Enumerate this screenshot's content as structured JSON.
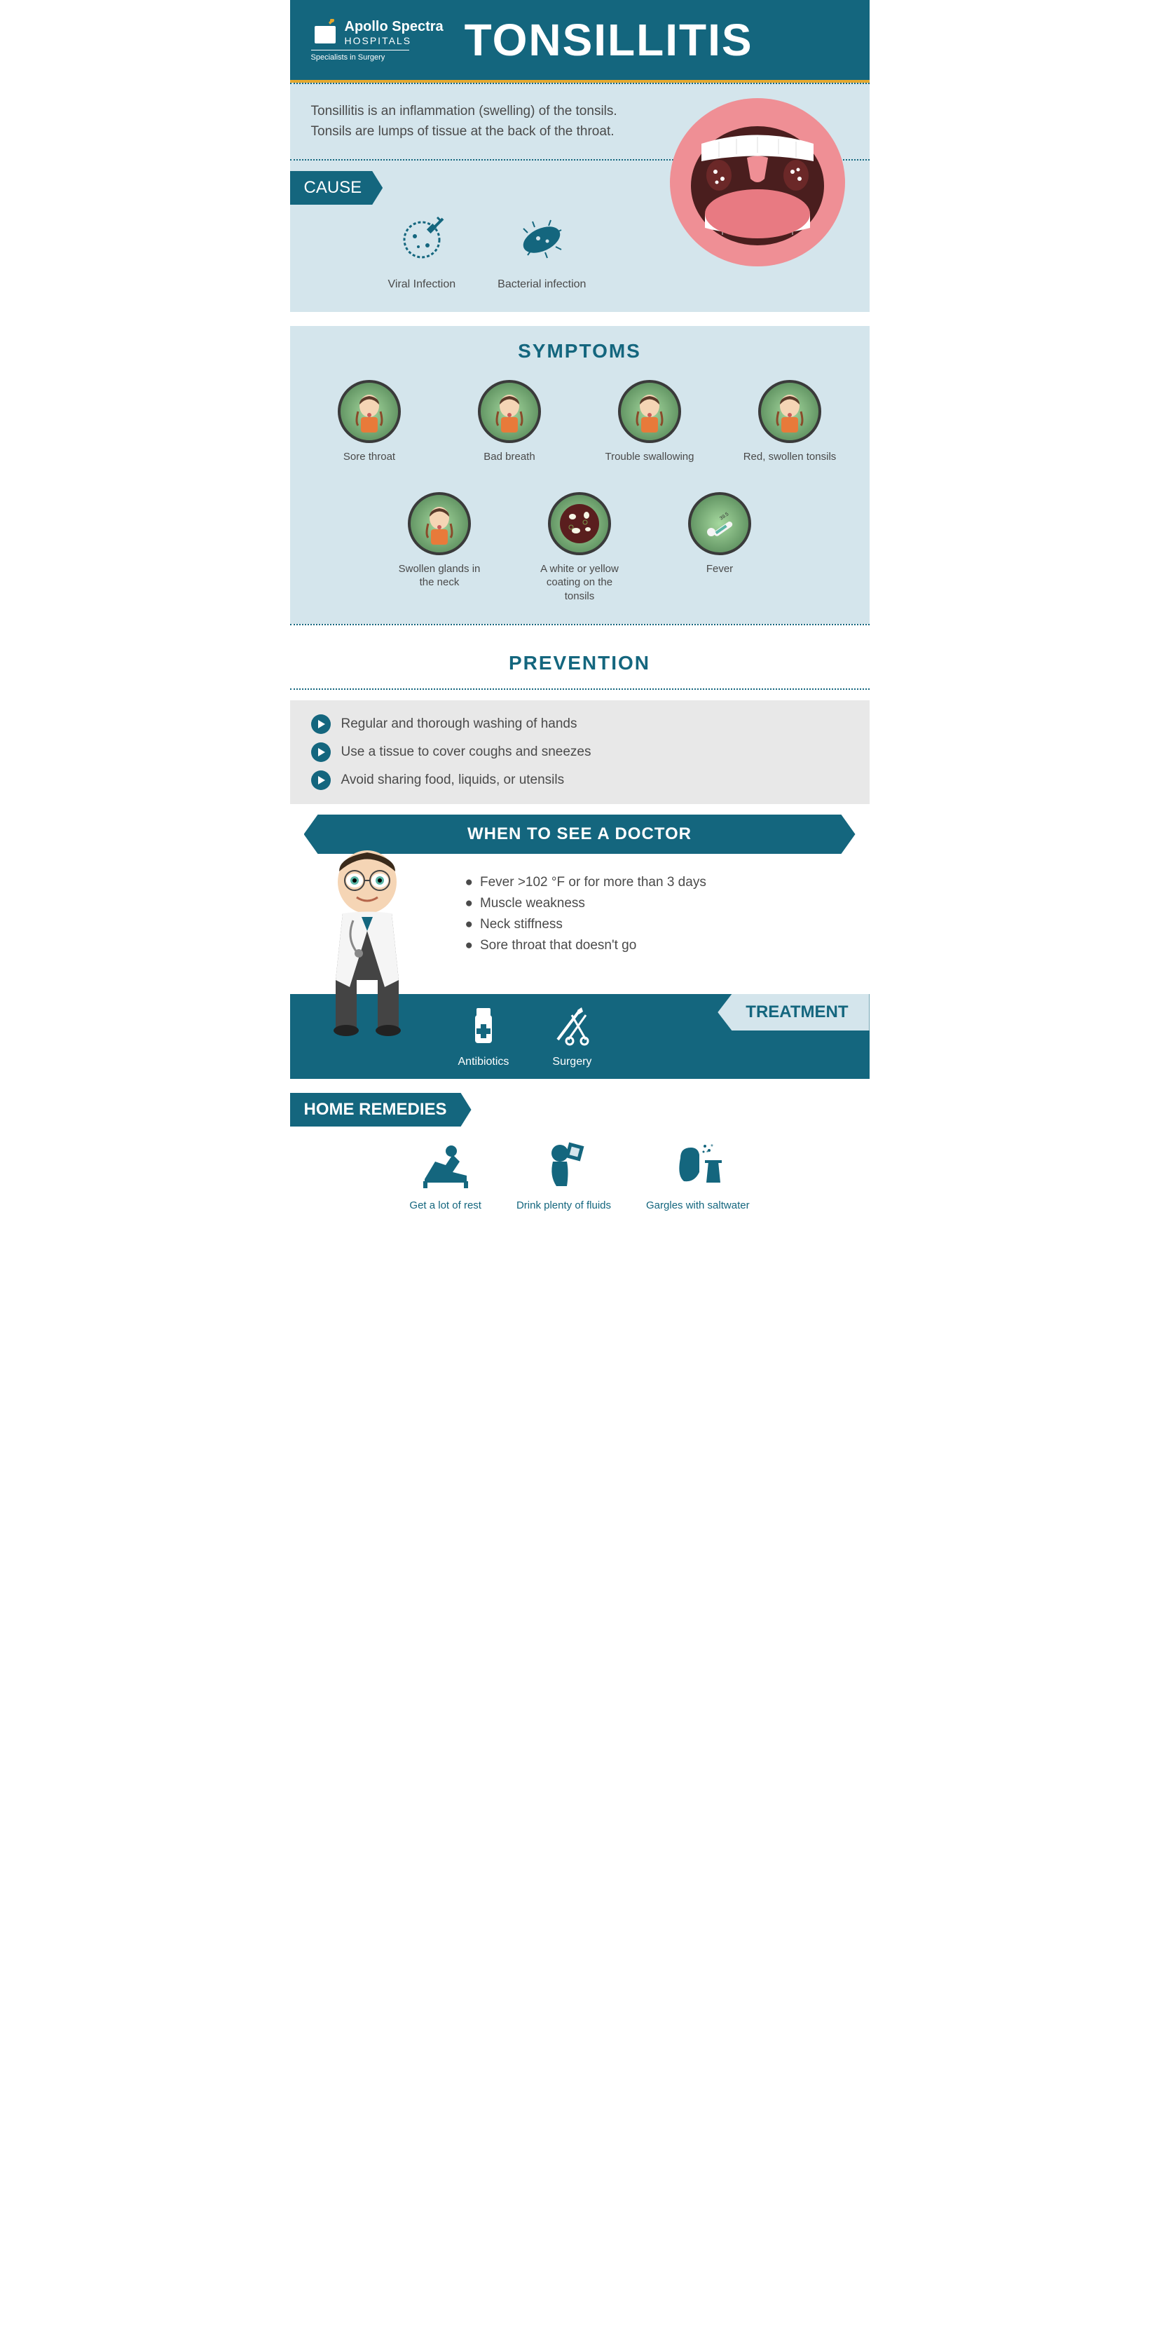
{
  "colors": {
    "primary": "#14667e",
    "light_bg": "#d4e5ec",
    "accent": "#e5a82e",
    "text": "#4a4a4a",
    "gray_bg": "#e8e8e8",
    "white": "#ffffff",
    "symptom_border": "#3a3a3a",
    "mouth_pink": "#ef8f95",
    "mouth_dark": "#4a1e1e",
    "tongue": "#e87a82"
  },
  "typography": {
    "title_size": 64,
    "section_title_size": 28,
    "body_size": 19,
    "label_size": 24,
    "caption_size": 15
  },
  "logo": {
    "name_main": "Apollo Spectra",
    "name_sub": "HOSPITALS",
    "tagline": "Specialists in Surgery"
  },
  "title": "TONSILLITIS",
  "intro": "Tonsillitis is an inflammation (swelling) of the tonsils. Tonsils are lumps of tissue at the back of the throat.",
  "sections": {
    "cause": {
      "label": "CAUSE",
      "items": [
        {
          "label": "Viral Infection",
          "icon": "virus-syringe-icon"
        },
        {
          "label": "Bacterial infection",
          "icon": "bacteria-icon"
        }
      ]
    },
    "symptoms": {
      "title": "SYMPTOMS",
      "items": [
        {
          "label": "Sore throat",
          "icon": "person-sore-throat-icon"
        },
        {
          "label": "Bad breath",
          "icon": "person-bad-breath-icon"
        },
        {
          "label": "Trouble swallowing",
          "icon": "person-swallow-icon"
        },
        {
          "label": "Red, swollen tonsils",
          "icon": "person-tonsils-icon"
        },
        {
          "label": "Swollen glands in the neck",
          "icon": "person-neck-icon"
        },
        {
          "label": "A white or yellow coating on the tonsils",
          "icon": "coating-icon"
        },
        {
          "label": "Fever",
          "icon": "thermometer-icon"
        }
      ]
    },
    "prevention": {
      "title": "PREVENTION",
      "items": [
        "Regular and thorough washing of hands",
        "Use a tissue to cover coughs and sneezes",
        "Avoid sharing food, liquids, or utensils"
      ]
    },
    "doctor": {
      "title": "WHEN TO SEE A DOCTOR",
      "items": [
        "Fever >102 °F or for more than 3 days",
        "Muscle weakness",
        "Neck stiffness",
        "Sore throat that doesn't go"
      ]
    },
    "treatment": {
      "label": "TREATMENT",
      "items": [
        {
          "label": "Antibiotics",
          "icon": "medicine-bottle-icon"
        },
        {
          "label": "Surgery",
          "icon": "scalpel-scissors-icon"
        }
      ]
    },
    "remedies": {
      "label": "HOME REMEDIES",
      "items": [
        {
          "label": "Get a lot of rest",
          "icon": "rest-icon"
        },
        {
          "label": "Drink plenty of fluids",
          "icon": "drink-icon"
        },
        {
          "label": "Gargles with saltwater",
          "icon": "gargle-icon"
        }
      ]
    }
  }
}
